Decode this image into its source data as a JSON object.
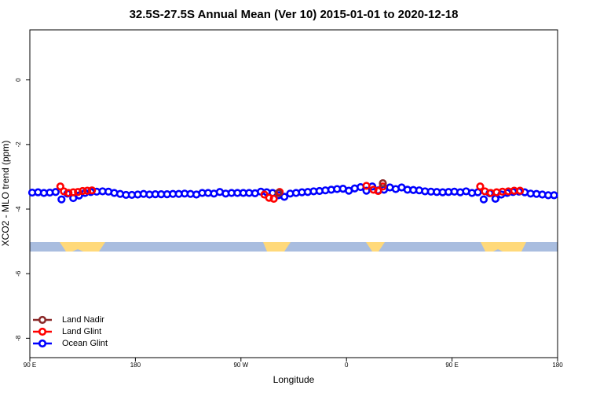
{
  "chart_data": {
    "type": "scatter",
    "title": "32.5S-27.5S Annual Mean (Ver 10)   2015-01-01 to 2020-12-18",
    "x_label": "Longitude",
    "y_label": "XCO2 - MLO trend (ppm)",
    "xlim": [
      90,
      540
    ],
    "xticks": [
      {
        "value": 90,
        "label": "90 E"
      },
      {
        "value": 180,
        "label": "180"
      },
      {
        "value": 270,
        "label": "90 W"
      },
      {
        "value": 360,
        "label": "0"
      },
      {
        "value": 450,
        "label": "90 E"
      },
      {
        "value": 540,
        "label": "180"
      }
    ],
    "ylim": [
      -8.6,
      1.55
    ],
    "yticks": [
      0,
      -2,
      -4,
      -6,
      -8
    ],
    "legend": "bottom-left",
    "series": [
      {
        "name": "Land Nadir",
        "color": "#8b2a2a",
        "x": [
          302,
          391
        ],
        "values": [
          -3.5,
          -3.2
        ]
      },
      {
        "name": "Land Glint",
        "color": "#ff0000",
        "x": [
          116,
          119,
          123,
          127,
          131,
          135,
          139,
          143,
          290,
          294,
          298,
          303,
          377,
          383,
          387,
          391,
          474,
          478,
          483,
          488,
          493,
          498,
          503,
          508
        ],
        "values": [
          -3.3,
          -3.45,
          -3.5,
          -3.48,
          -3.47,
          -3.44,
          -3.43,
          -3.42,
          -3.55,
          -3.65,
          -3.68,
          -3.47,
          -3.28,
          -3.4,
          -3.44,
          -3.3,
          -3.3,
          -3.45,
          -3.5,
          -3.48,
          -3.46,
          -3.45,
          -3.43,
          -3.43
        ]
      },
      {
        "name": "Ocean Glint",
        "color": "#0000ff",
        "x": [
          92,
          97,
          102,
          107,
          112,
          117,
          122,
          127,
          132,
          137,
          142,
          147,
          152,
          157,
          162,
          167,
          172,
          177,
          182,
          187,
          192,
          197,
          202,
          207,
          212,
          217,
          222,
          227,
          232,
          237,
          242,
          247,
          252,
          257,
          262,
          267,
          272,
          277,
          282,
          287,
          292,
          297,
          302,
          307,
          312,
          317,
          322,
          327,
          332,
          337,
          342,
          347,
          352,
          357,
          362,
          367,
          372,
          377,
          382,
          387,
          392,
          397,
          402,
          407,
          412,
          417,
          422,
          427,
          432,
          437,
          442,
          447,
          452,
          457,
          462,
          467,
          472,
          477,
          482,
          487,
          492,
          497,
          502,
          507,
          512,
          517,
          522,
          527,
          532,
          537
        ],
        "values": [
          -3.49,
          -3.48,
          -3.5,
          -3.49,
          -3.47,
          -3.7,
          -3.52,
          -3.66,
          -3.58,
          -3.5,
          -3.47,
          -3.46,
          -3.45,
          -3.46,
          -3.5,
          -3.53,
          -3.56,
          -3.56,
          -3.55,
          -3.53,
          -3.55,
          -3.54,
          -3.54,
          -3.54,
          -3.53,
          -3.53,
          -3.52,
          -3.53,
          -3.55,
          -3.5,
          -3.5,
          -3.52,
          -3.47,
          -3.52,
          -3.5,
          -3.5,
          -3.5,
          -3.5,
          -3.51,
          -3.46,
          -3.48,
          -3.5,
          -3.57,
          -3.62,
          -3.52,
          -3.5,
          -3.48,
          -3.47,
          -3.45,
          -3.44,
          -3.42,
          -3.4,
          -3.38,
          -3.37,
          -3.43,
          -3.36,
          -3.32,
          -3.43,
          -3.3,
          -3.42,
          -3.4,
          -3.33,
          -3.38,
          -3.33,
          -3.4,
          -3.41,
          -3.42,
          -3.45,
          -3.46,
          -3.47,
          -3.48,
          -3.47,
          -3.46,
          -3.48,
          -3.45,
          -3.5,
          -3.48,
          -3.7,
          -3.51,
          -3.68,
          -3.55,
          -3.5,
          -3.47,
          -3.46,
          -3.48,
          -3.52,
          -3.53,
          -3.55,
          -3.57,
          -3.57
        ]
      }
    ]
  }
}
